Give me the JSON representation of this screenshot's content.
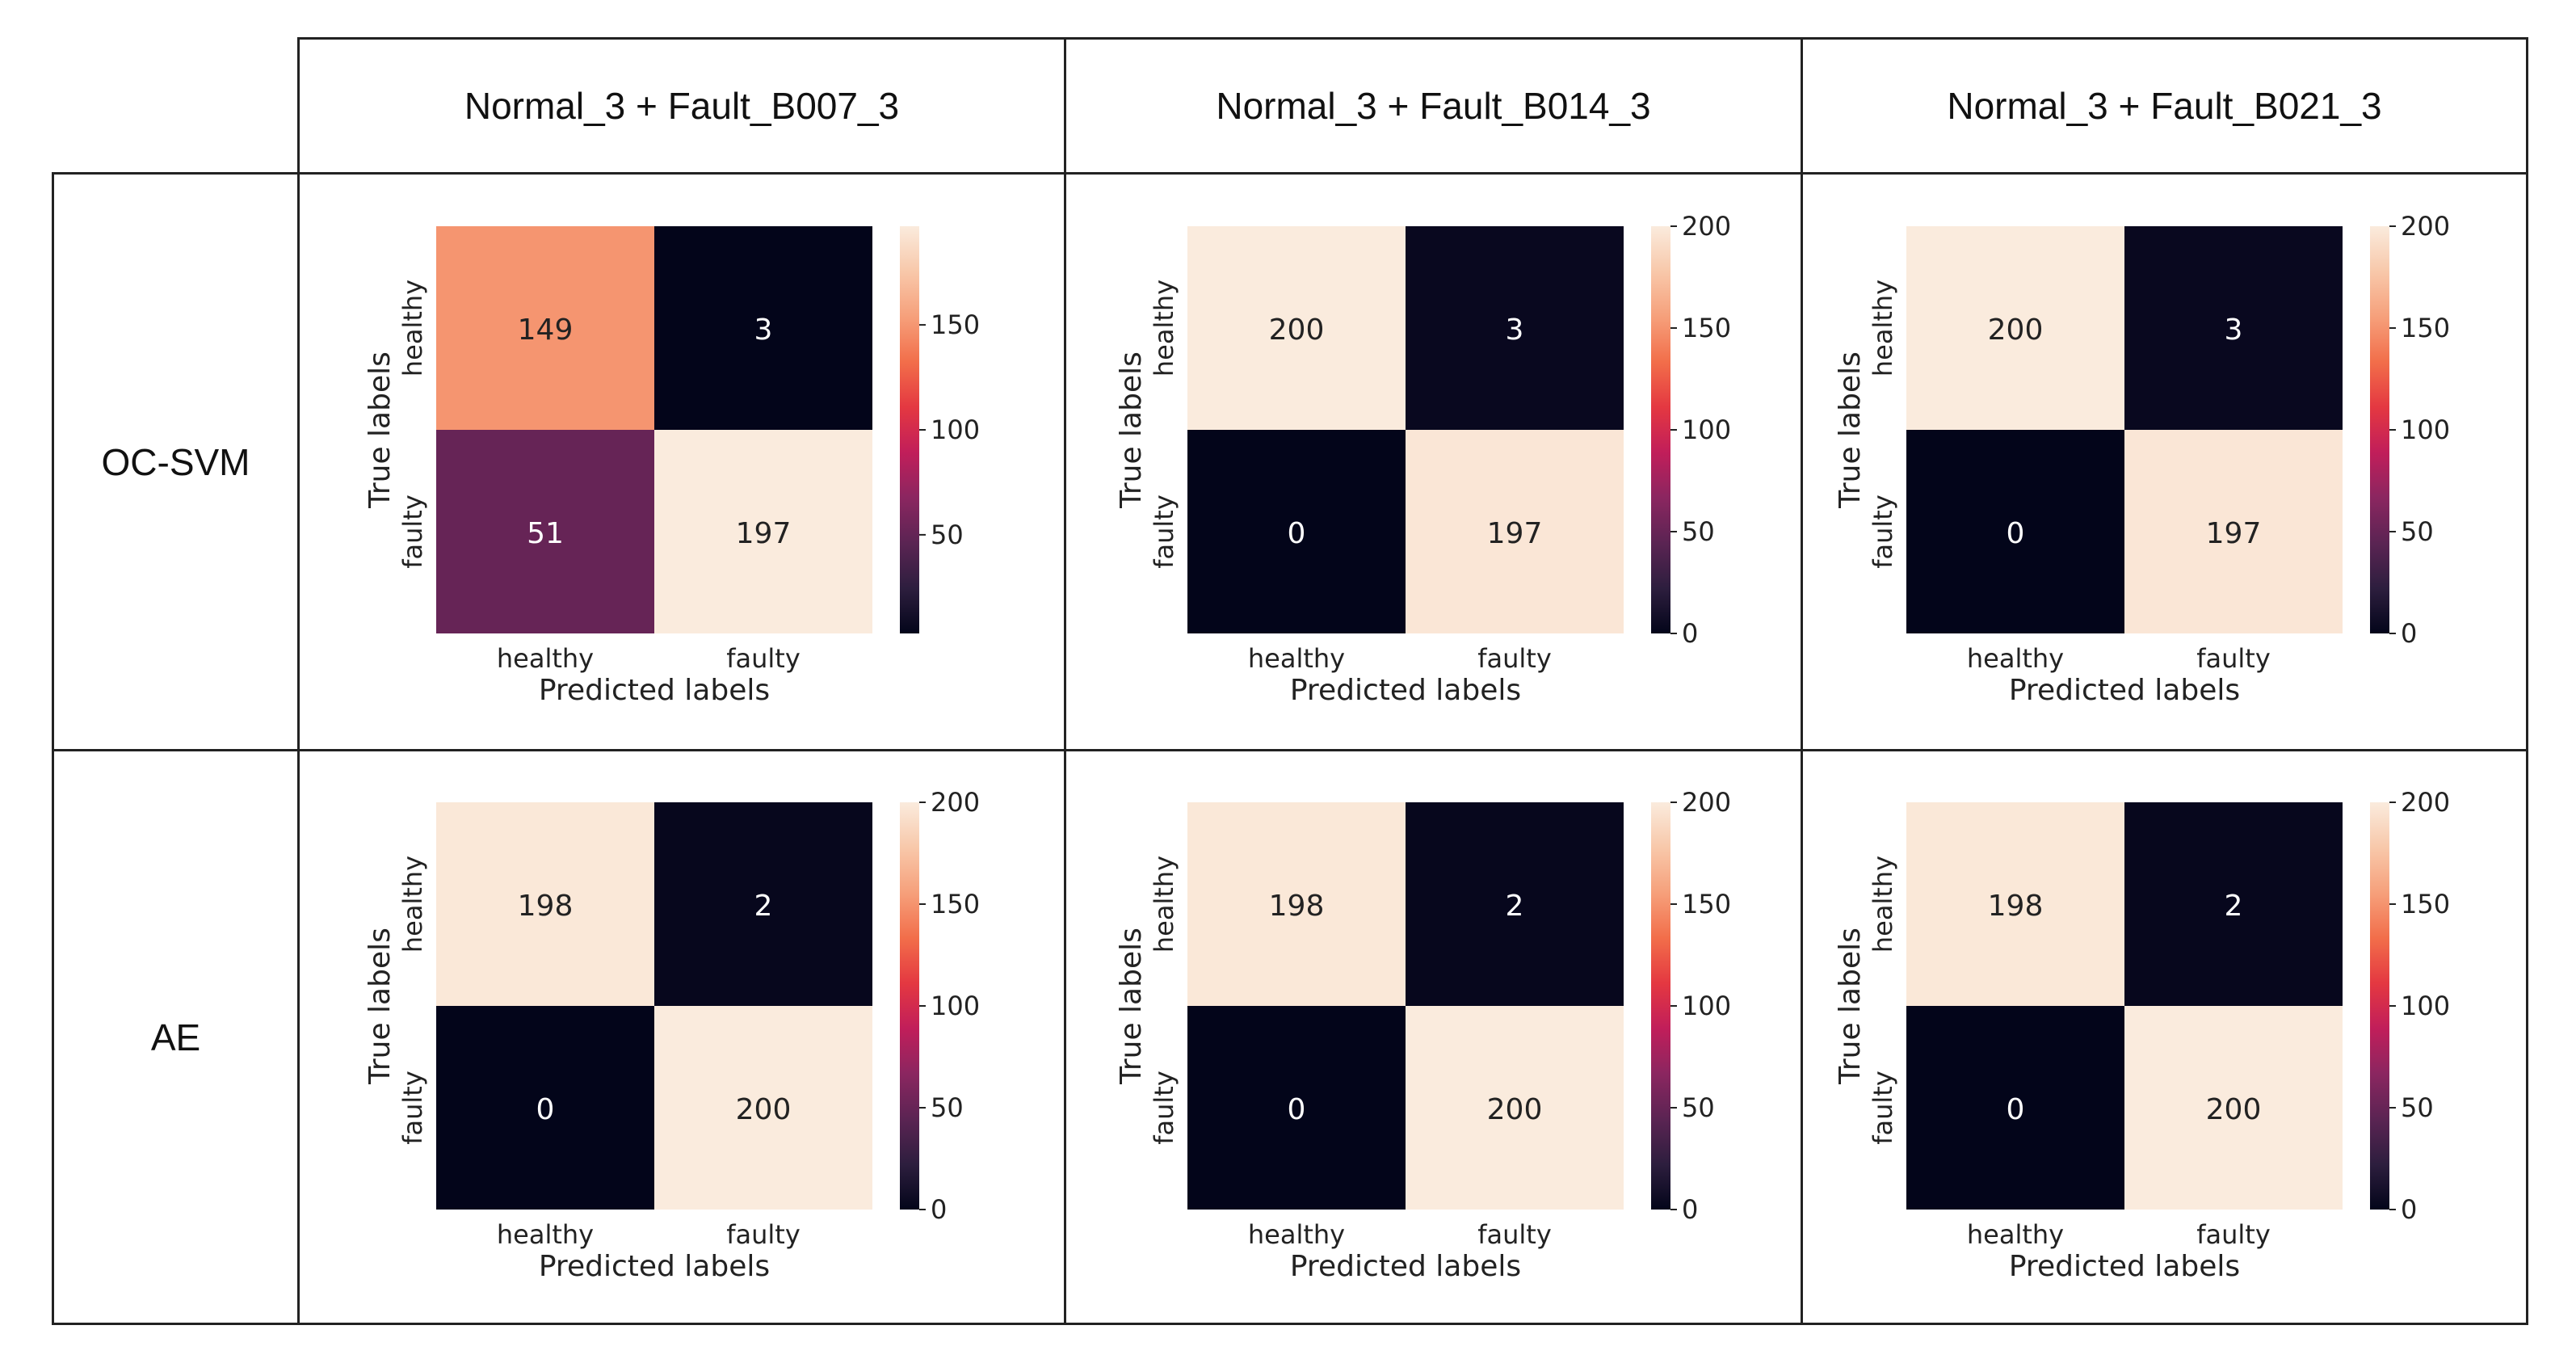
{
  "table": {
    "column_headers": [
      "Normal_3 + Fault_B007_3",
      "Normal_3 + Fault_B014_3",
      "Normal_3 + Fault_B021_3"
    ],
    "row_headers": [
      "OC-SVM",
      "AE"
    ]
  },
  "colors": {
    "rocket_stops": [
      "#03051a",
      "#2d1e3e",
      "#5b2453",
      "#8b2660",
      "#c11e5a",
      "#e43841",
      "#f26e4a",
      "#f6a07b",
      "#f8c8aa",
      "#faebdd"
    ],
    "grid_line": "#222222",
    "dark_text": "#222222",
    "light_text": "#ffffff"
  },
  "chart_data": [
    {
      "type": "heatmap",
      "model": "OC-SVM",
      "dataset": "Normal_3 + Fault_B007_3",
      "title": "",
      "xlabel": "Predicted labels",
      "ylabel": "True labels",
      "x_categories": [
        "healthy",
        "faulty"
      ],
      "y_categories": [
        "healthy",
        "faulty"
      ],
      "values": [
        [
          149,
          3
        ],
        [
          51,
          197
        ]
      ],
      "colorbar": {
        "vmin": 3,
        "vmax": 197,
        "ticks": [
          50,
          100,
          150
        ]
      }
    },
    {
      "type": "heatmap",
      "model": "OC-SVM",
      "dataset": "Normal_3 + Fault_B014_3",
      "title": "",
      "xlabel": "Predicted labels",
      "ylabel": "True labels",
      "x_categories": [
        "healthy",
        "faulty"
      ],
      "y_categories": [
        "healthy",
        "faulty"
      ],
      "values": [
        [
          200,
          3
        ],
        [
          0,
          197
        ]
      ],
      "colorbar": {
        "vmin": 0,
        "vmax": 200,
        "ticks": [
          0,
          50,
          100,
          150,
          200
        ]
      }
    },
    {
      "type": "heatmap",
      "model": "OC-SVM",
      "dataset": "Normal_3 + Fault_B021_3",
      "title": "",
      "xlabel": "Predicted labels",
      "ylabel": "True labels",
      "x_categories": [
        "healthy",
        "faulty"
      ],
      "y_categories": [
        "healthy",
        "faulty"
      ],
      "values": [
        [
          200,
          3
        ],
        [
          0,
          197
        ]
      ],
      "colorbar": {
        "vmin": 0,
        "vmax": 200,
        "ticks": [
          0,
          50,
          100,
          150,
          200
        ]
      }
    },
    {
      "type": "heatmap",
      "model": "AE",
      "dataset": "Normal_3 + Fault_B007_3",
      "title": "",
      "xlabel": "Predicted labels",
      "ylabel": "True labels",
      "x_categories": [
        "healthy",
        "faulty"
      ],
      "y_categories": [
        "healthy",
        "faulty"
      ],
      "values": [
        [
          198,
          2
        ],
        [
          0,
          200
        ]
      ],
      "colorbar": {
        "vmin": 0,
        "vmax": 200,
        "ticks": [
          0,
          50,
          100,
          150,
          200
        ]
      }
    },
    {
      "type": "heatmap",
      "model": "AE",
      "dataset": "Normal_3 + Fault_B014_3",
      "title": "",
      "xlabel": "Predicted labels",
      "ylabel": "True labels",
      "x_categories": [
        "healthy",
        "faulty"
      ],
      "y_categories": [
        "healthy",
        "faulty"
      ],
      "values": [
        [
          198,
          2
        ],
        [
          0,
          200
        ]
      ],
      "colorbar": {
        "vmin": 0,
        "vmax": 200,
        "ticks": [
          0,
          50,
          100,
          150,
          200
        ]
      }
    },
    {
      "type": "heatmap",
      "model": "AE",
      "dataset": "Normal_3 + Fault_B021_3",
      "title": "",
      "xlabel": "Predicted labels",
      "ylabel": "True labels",
      "x_categories": [
        "healthy",
        "faulty"
      ],
      "y_categories": [
        "healthy",
        "faulty"
      ],
      "values": [
        [
          198,
          2
        ],
        [
          0,
          200
        ]
      ],
      "colorbar": {
        "vmin": 0,
        "vmax": 200,
        "ticks": [
          0,
          50,
          100,
          150,
          200
        ]
      }
    }
  ]
}
